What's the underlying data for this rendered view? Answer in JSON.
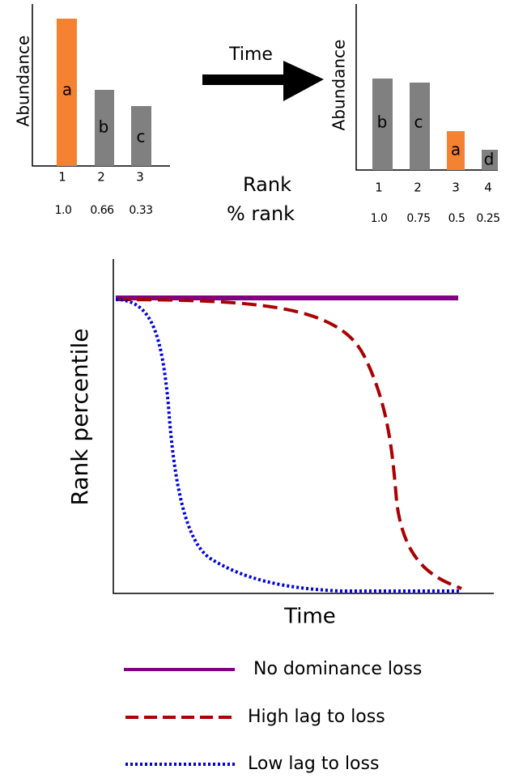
{
  "top_left": {
    "y_label": "Abundance",
    "bars": [
      "a",
      "b",
      "c"
    ],
    "ranks": [
      "1",
      "2",
      "3"
    ],
    "percent_ranks": [
      "1.0",
      "0.66",
      "0.33"
    ]
  },
  "arrow_label": "Time",
  "center_labels": [
    "Rank",
    "% rank"
  ],
  "top_right": {
    "y_label": "Abundance",
    "bars": [
      "b",
      "c",
      "a",
      "d"
    ],
    "ranks": [
      "1",
      "2",
      "3",
      "4"
    ],
    "percent_ranks": [
      "1.0",
      "0.75",
      "0.5",
      "0.25"
    ]
  },
  "main_plot": {
    "y_label": "Rank percentile",
    "x_label": "Time"
  },
  "legend": [
    "No dominance loss",
    "High lag to loss",
    "Low lag to loss"
  ]
}
